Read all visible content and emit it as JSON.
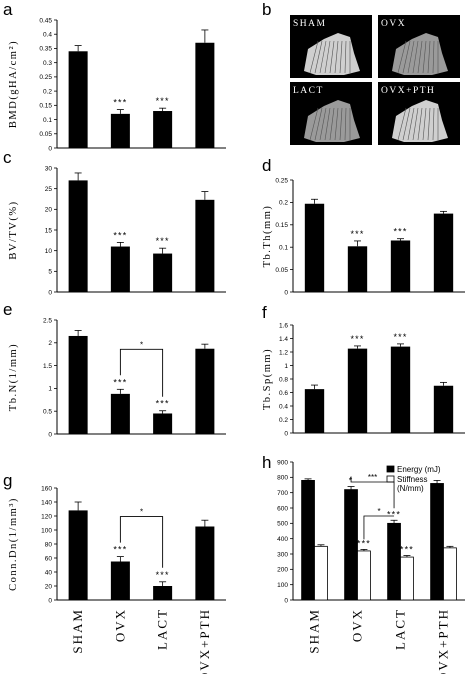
{
  "categories": [
    "SHAM",
    "OVX",
    "LACT",
    "OVX+PTH"
  ],
  "chart_data": [
    {
      "panel": "a",
      "type": "bar",
      "ylabel": "BMD(gHA/cm²)",
      "ylim": [
        0,
        0.45
      ],
      "yticks": [
        "0",
        "0.05",
        "0.1",
        "0.15",
        "0.2",
        "0.25",
        "0.3",
        "0.35",
        "0.4",
        "0.45"
      ],
      "values": [
        0.34,
        0.12,
        0.13,
        0.37
      ],
      "errors": [
        0.02,
        0.015,
        0.01,
        0.045
      ],
      "stars": [
        "",
        "***",
        "***",
        ""
      ]
    },
    {
      "panel": "c",
      "type": "bar",
      "ylabel": "BV/TV(%)",
      "ylim": [
        0,
        30
      ],
      "yticks": [
        "0",
        "5",
        "10",
        "15",
        "20",
        "25",
        "30"
      ],
      "values": [
        27,
        11,
        9.3,
        22.3
      ],
      "errors": [
        1.8,
        1,
        1.3,
        2
      ],
      "stars": [
        "",
        "***",
        "***",
        ""
      ]
    },
    {
      "panel": "d",
      "type": "bar",
      "ylabel": "Tb.Th(mm)",
      "ylim": [
        0,
        0.25
      ],
      "yticks": [
        "0",
        "0.05",
        "0.1",
        "0.15",
        "0.2",
        "0.25"
      ],
      "values": [
        0.197,
        0.102,
        0.115,
        0.175
      ],
      "errors": [
        0.01,
        0.012,
        0.004,
        0.005
      ],
      "stars": [
        "",
        "***",
        "***",
        ""
      ]
    },
    {
      "panel": "e",
      "type": "bar",
      "ylabel": "Tb.N(1/mm)",
      "ylim": [
        0,
        2.5
      ],
      "yticks": [
        "0",
        "0.5",
        "1",
        "1.5",
        "2",
        "2.5"
      ],
      "values": [
        2.15,
        0.88,
        0.45,
        1.87
      ],
      "errors": [
        0.12,
        0.1,
        0.06,
        0.1
      ],
      "stars": [
        "",
        "***",
        "***",
        ""
      ],
      "bracket": {
        "from": 1,
        "to": 2,
        "label": "*"
      }
    },
    {
      "panel": "f",
      "type": "bar",
      "ylabel": "Tb.Sp(mm)",
      "ylim": [
        0,
        1.6
      ],
      "yticks": [
        "0",
        "0.2",
        "0.4",
        "0.6",
        "0.8",
        "1",
        "1.2",
        "1.4",
        "1.6"
      ],
      "values": [
        0.65,
        1.25,
        1.28,
        0.7
      ],
      "errors": [
        0.06,
        0.04,
        0.04,
        0.05
      ],
      "stars": [
        "",
        "***",
        "***",
        ""
      ]
    },
    {
      "panel": "g",
      "type": "bar",
      "ylabel": "Conn.Dn(1/mm³)",
      "ylim": [
        0,
        160
      ],
      "yticks": [
        "0",
        "20",
        "40",
        "60",
        "80",
        "100",
        "120",
        "140",
        "160"
      ],
      "values": [
        128,
        55,
        20,
        105
      ],
      "errors": [
        12,
        7,
        6,
        9
      ],
      "stars": [
        "",
        "***",
        "***",
        ""
      ],
      "bracket": {
        "from": 1,
        "to": 2,
        "label": "*"
      }
    },
    {
      "panel": "h",
      "type": "bar",
      "ylabel": "",
      "ylim": [
        0,
        900
      ],
      "yticks": [
        "0",
        "100",
        "200",
        "300",
        "400",
        "500",
        "600",
        "700",
        "800",
        "900"
      ],
      "legend_position": "top-right",
      "series": [
        {
          "name": "Energy (mJ)",
          "fill": "#000000",
          "values": [
            780,
            720,
            500,
            760
          ],
          "errors": [
            10,
            20,
            20,
            20
          ],
          "stars": [
            "",
            "*",
            "***",
            ""
          ]
        },
        {
          "name": "Stiffness (N/mm)",
          "fill": "#ffffff",
          "values": [
            350,
            320,
            280,
            340
          ],
          "errors": [
            10,
            10,
            10,
            10
          ],
          "stars": [
            "",
            "***",
            "***",
            ""
          ]
        }
      ],
      "brackets": [
        {
          "label": "***"
        },
        {
          "label": "*"
        }
      ]
    }
  ],
  "panel_b": {
    "panel": "b",
    "images": [
      "SHAM",
      "OVX",
      "LACT",
      "OVX+PTH"
    ]
  }
}
